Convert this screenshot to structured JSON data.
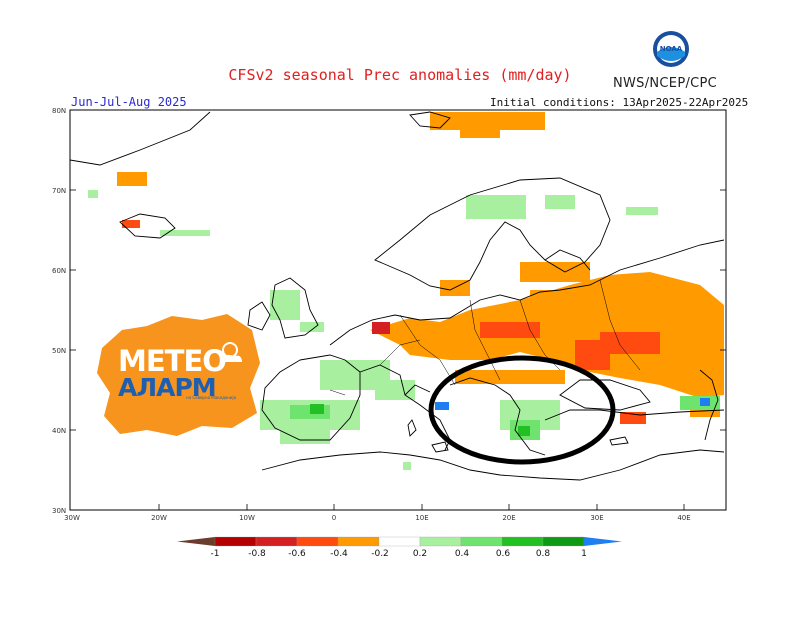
{
  "header": {
    "title": "CFSv2 seasonal Prec anomalies (mm/day)",
    "agency": "NWS/NCEP/CPC",
    "season": "Jun-Jul-Aug 2025",
    "initial_conditions": "Initial conditions: 13Apr2025-22Apr2025"
  },
  "noaa_logo": {
    "text": "NOAA",
    "icon": "noaa-emblem-icon"
  },
  "watermark": {
    "line1": "МЕТЕО",
    "line2": "АЛАРМ",
    "tagline": "на Северна Македонија",
    "icon": "sun-cloud-icon",
    "color": "#f7941d"
  },
  "map": {
    "lat_labels": [
      "80N",
      "70N",
      "60N",
      "50N",
      "40N",
      "30N"
    ],
    "lon_labels": [
      "30W",
      "20W",
      "10W",
      "0",
      "10E",
      "20E",
      "30E",
      "40E"
    ],
    "extent": {
      "lon": [
        -30,
        45
      ],
      "lat": [
        30,
        80
      ]
    },
    "highlight": "balkans-ellipse"
  },
  "legend": {
    "labels": [
      "-1",
      "-0.8",
      "-0.6",
      "-0.4",
      "-0.2",
      "0.2",
      "0.4",
      "0.6",
      "0.8",
      "1"
    ],
    "colors": [
      "#6b3c2c",
      "#b30000",
      "#d42020",
      "#ff4a10",
      "#ff9a00",
      "#ffffff",
      "#a8f0a0",
      "#6ee46e",
      "#22c022",
      "#0f9a14",
      "#1f7ff0"
    ]
  }
}
